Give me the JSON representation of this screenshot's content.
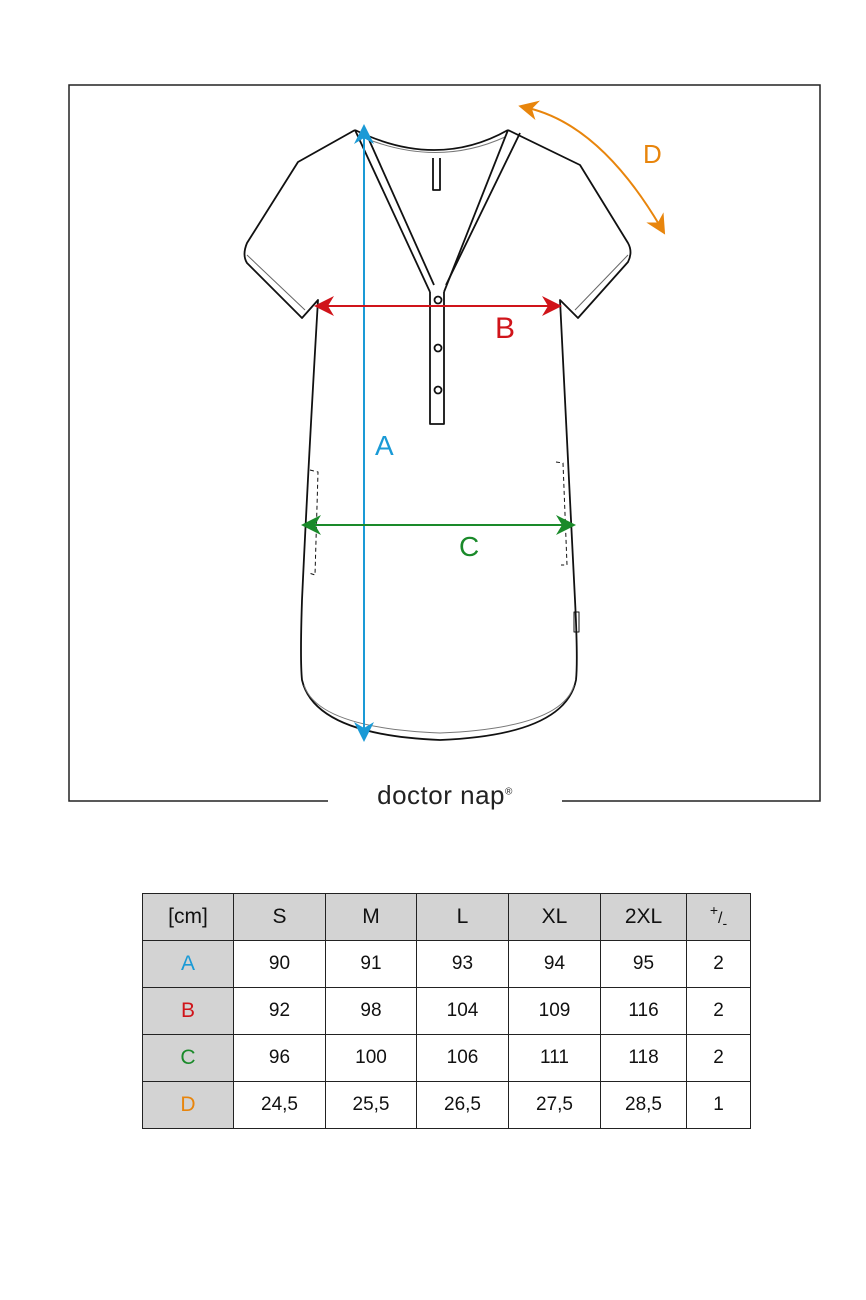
{
  "brand": {
    "name": "doctor nap",
    "mark": "®"
  },
  "measures": [
    {
      "key": "A",
      "color": "#1a9ad6"
    },
    {
      "key": "B",
      "color": "#d0141a"
    },
    {
      "key": "C",
      "color": "#1a8a2a"
    },
    {
      "key": "D",
      "color": "#e8850c"
    }
  ],
  "table": {
    "unit": "[cm]",
    "sizes": [
      "S",
      "M",
      "L",
      "XL",
      "2XL"
    ],
    "tolerance_header": {
      "plus": "+",
      "slash": "/",
      "minus": "-"
    },
    "rows": [
      {
        "label": "A",
        "values": [
          "90",
          "91",
          "93",
          "94",
          "95"
        ],
        "tolerance": "2"
      },
      {
        "label": "B",
        "values": [
          "92",
          "98",
          "104",
          "109",
          "116"
        ],
        "tolerance": "2"
      },
      {
        "label": "C",
        "values": [
          "96",
          "100",
          "106",
          "111",
          "118"
        ],
        "tolerance": "2"
      },
      {
        "label": "D",
        "values": [
          "24,5",
          "25,5",
          "26,5",
          "27,5",
          "28,5"
        ],
        "tolerance": "1"
      }
    ]
  }
}
